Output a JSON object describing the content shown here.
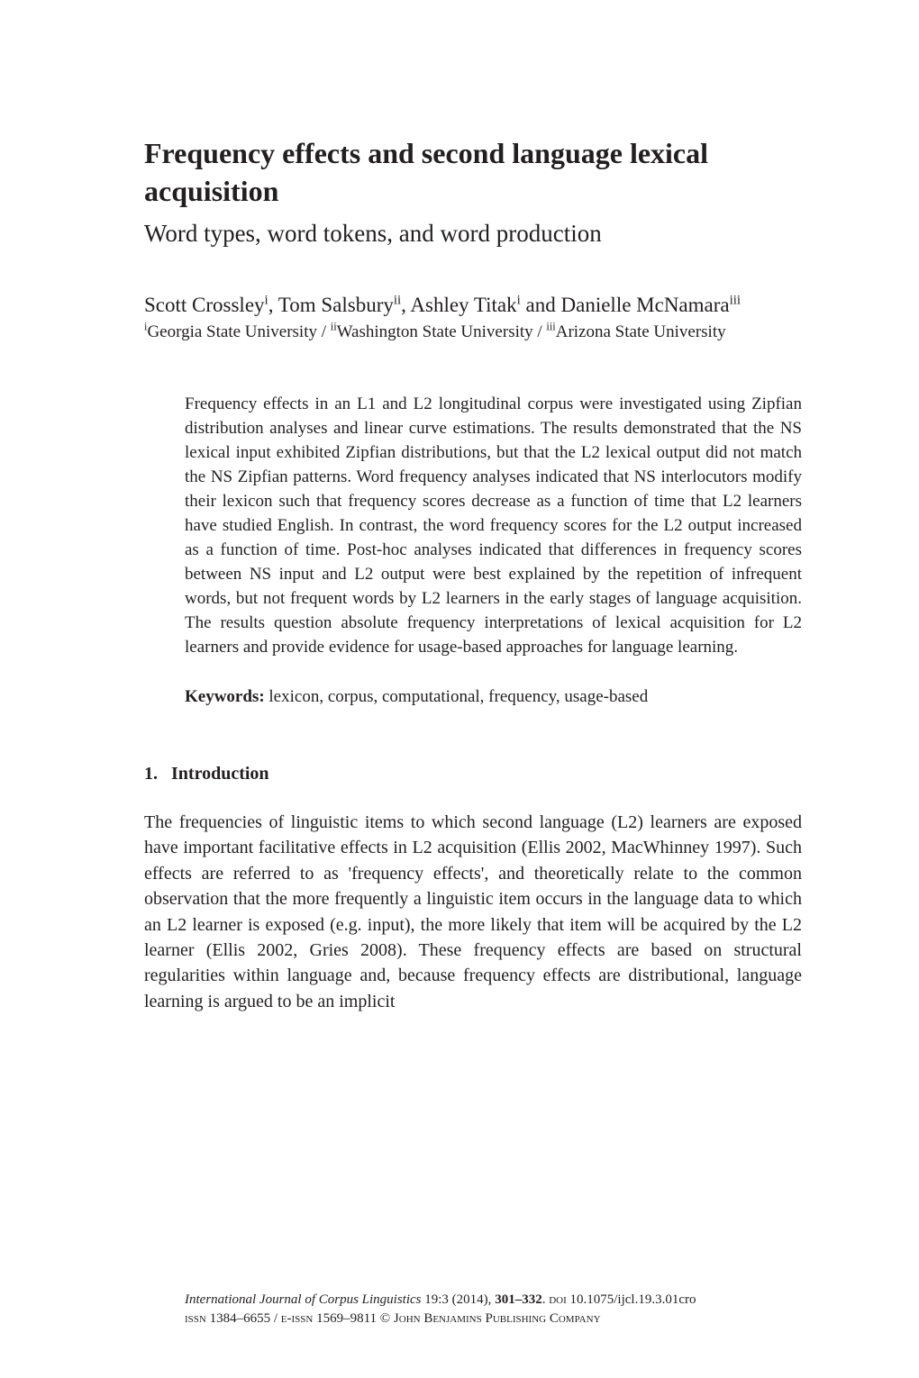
{
  "title": "Frequency effects and second language lexical acquisition",
  "subtitle": "Word types, word tokens, and word production",
  "authors_html": "Scott Crossley<span class='sup'>i</span>, Tom Salsbury<span class='sup'>ii</span>, Ashley Titak<span class='sup'>i</span> and Danielle McNamara<span class='sup'>iii</span>",
  "affiliations_html": "<span class='sup'>i</span>Georgia State University / <span class='sup'>ii</span>Washington State University / <span class='sup'>iii</span>Arizona State University",
  "abstract": "Frequency effects in an L1 and L2 longitudinal corpus were investigated using Zipfian distribution analyses and linear curve estimations. The results demonstrated that the NS lexical input exhibited Zipfian distributions, but that the L2 lexical output did not match the NS Zipfian patterns. Word frequency analyses indicated that NS interlocutors modify their lexicon such that frequency scores decrease as a function of time that L2 learners have studied English. In contrast, the word frequency scores for the L2 output increased as a function of time. Post-hoc analyses indicated that differences in frequency scores between NS input and L2 output were best explained by the repetition of infrequent words, but not frequent words by L2 learners in the early stages of language acquisition. The results question absolute frequency interpretations of lexical acquisition for L2 learners and provide evidence for usage-based approaches for language learning.",
  "keywords_label": "Keywords:",
  "keywords_text": " lexicon, corpus, computational, frequency, usage-based",
  "section_number": "1.",
  "section_title": "Introduction",
  "body": "The frequencies of linguistic items to which second language (L2) learners are exposed have important facilitative effects in L2 acquisition (Ellis 2002, MacWhinney 1997). Such effects are referred to as 'frequency effects', and theoretically relate to the common observation that the more frequently a linguistic item occurs in the language data to which an L2 learner is exposed (e.g. input), the more likely that item will be acquired by the L2 learner (Ellis 2002, Gries 2008). These frequency effects are based on structural regularities within language and, because frequency effects are distributional, language learning is argued to be an implicit",
  "footer": {
    "journal": "International Journal of Corpus Linguistics",
    "vol_issue": "19:3 (2014),",
    "pages": "301–332",
    "doi_label": "doi",
    "doi": "10.1075/ijcl.19.3.01cro",
    "issn_line": "issn 1384–6655 / e-issn 1569–9811 © John Benjamins Publishing Company"
  }
}
